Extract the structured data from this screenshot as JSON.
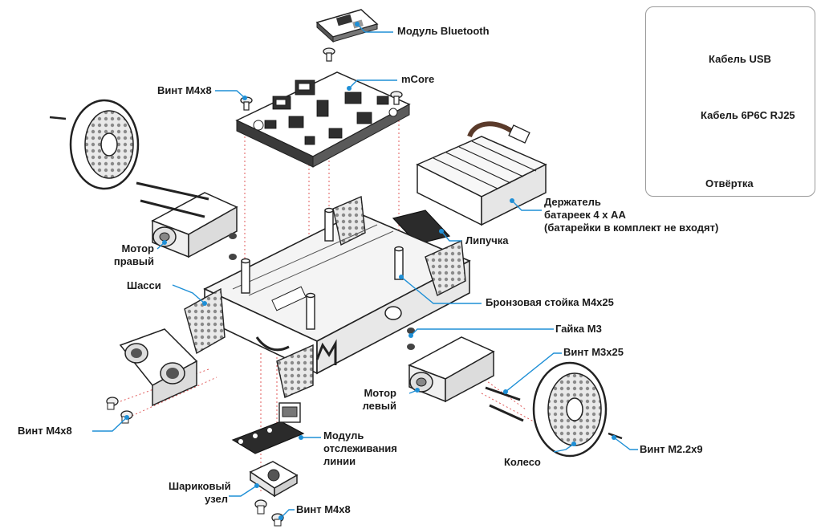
{
  "accent_color": "#1e8fd6",
  "labels": {
    "bluetooth": "Модуль Bluetooth",
    "mcore": "mCore",
    "screw_top": "Винт М4х8",
    "usb_cable": "Кабель USB",
    "rj25_cable": "Кабель 6P6C RJ25",
    "screwdriver": "Отвёртка",
    "battery_holder": [
      "Держатель",
      "батареек 4 х АА",
      "(батарейки в комплект не входят)"
    ],
    "velcro": "Липучка",
    "motor_right": [
      "Мотор",
      "правый"
    ],
    "chassis": "Шасси",
    "standoff": "Бронзовая стойка М4х25",
    "nut": "Гайка М3",
    "screw_m3x25": "Винт М3х25",
    "motor_left": [
      "Мотор",
      "левый"
    ],
    "screw_left": "Винт М4х8",
    "line_module": [
      "Модуль",
      "отслеживания",
      "линии"
    ],
    "wheel": "Колесо",
    "screw_m22": "Винт М2.2х9",
    "ball_caster": [
      "Шариковый",
      "узел"
    ],
    "screw_bottom": "Винт М4х8"
  }
}
